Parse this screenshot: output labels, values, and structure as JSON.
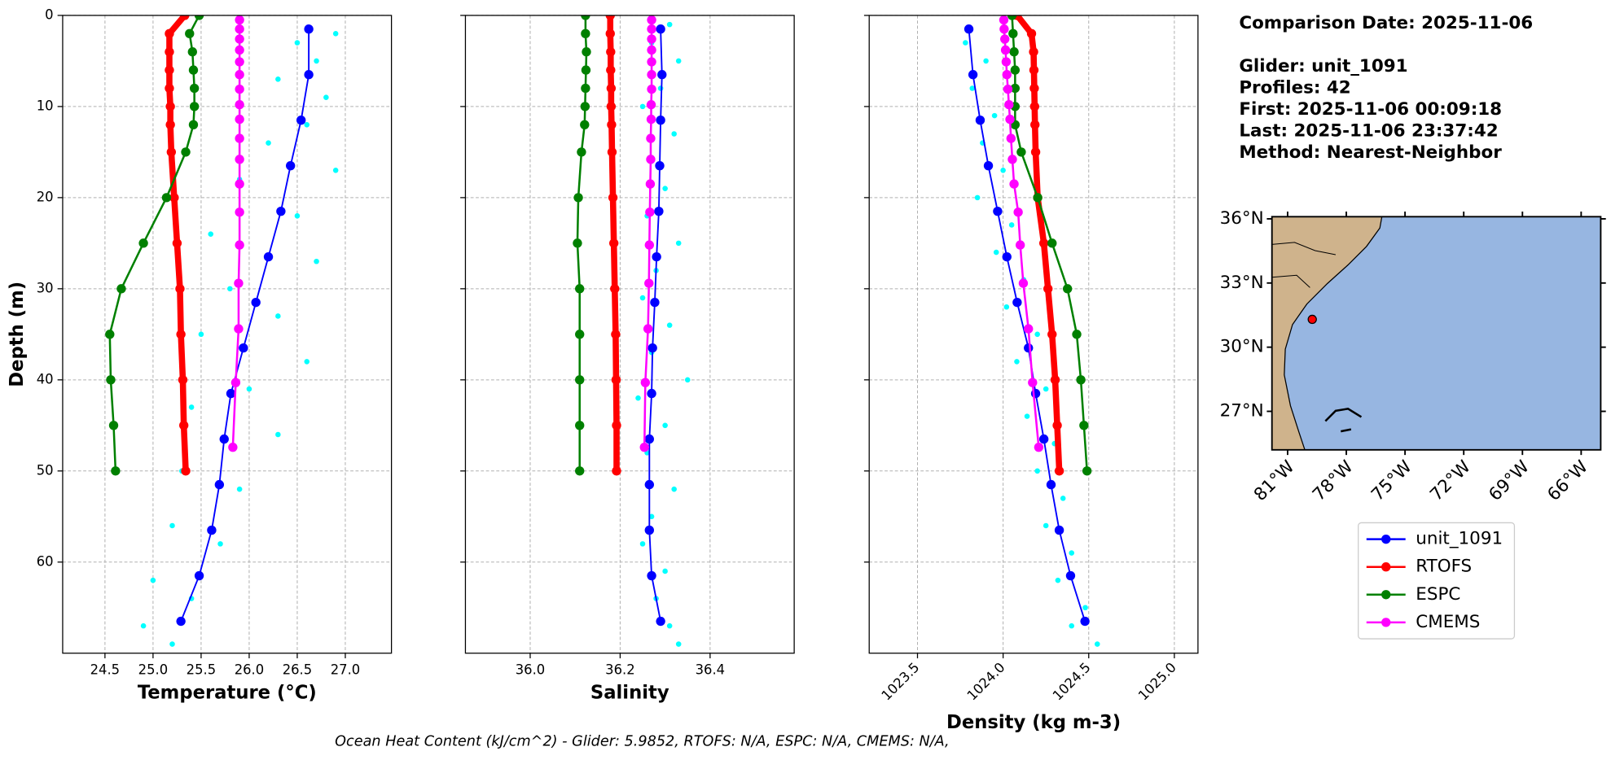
{
  "info": [
    "Comparison Date: 2025-11-06",
    "Glider: unit_1091",
    "Profiles: 42",
    "First: 2025-11-06 00:09:18",
    "Last: 2025-11-06 23:37:42",
    "Method: Nearest-Neighbor"
  ],
  "footer": "Ocean Heat Content (kJ/cm^2) - Glider: 5.9852,  RTOFS: N/A,  ESPC: N/A,  CMEMS: N/A,",
  "chart_data": [
    {
      "type": "profile",
      "xlabel": "Temperature (°C)",
      "ylabel": "Depth (m)",
      "grid": true,
      "xlim": [
        24.06,
        27.48
      ],
      "xticks": [
        24.5,
        {
          "value": 25,
          "label": "25.0"
        },
        25.5,
        {
          "value": 26,
          "label": "26.0"
        },
        26.5,
        {
          "value": 27,
          "label": "27.0"
        }
      ],
      "ylim": [
        70,
        0
      ],
      "yticks": [
        0,
        10,
        20,
        30,
        40,
        50,
        60
      ],
      "scatter": {
        "color": "#00ffff",
        "x": [
          26.9,
          26.5,
          26.7,
          26.3,
          26.8,
          26.6,
          26.2,
          26.9,
          25.9,
          26.5,
          25.6,
          26.7,
          25.8,
          26.3,
          25.5,
          26.6,
          26.0,
          25.4,
          26.3,
          25.3,
          25.9,
          25.2,
          25.7,
          25.0,
          25.4,
          24.9,
          25.2
        ],
        "y": [
          2,
          3,
          5,
          7,
          9,
          12,
          14,
          17,
          18,
          22,
          24,
          27,
          30,
          33,
          35,
          38,
          41,
          43,
          46,
          50,
          52,
          56,
          58,
          62,
          64,
          67,
          69
        ]
      },
      "series": [
        {
          "name": "unit_1091",
          "color": "#0000ff",
          "linewidth": 1.5,
          "x": [
            26.62,
            26.62,
            26.54,
            26.43,
            26.33,
            26.2,
            26.07,
            25.94,
            25.81,
            25.74,
            25.69,
            25.61,
            25.48,
            25.29
          ],
          "y": [
            1.5,
            6.5,
            11.5,
            16.5,
            21.5,
            26.5,
            31.5,
            36.5,
            41.5,
            46.5,
            51.5,
            56.5,
            61.5,
            66.5
          ]
        },
        {
          "name": "RTOFS",
          "color": "#ff0000",
          "linewidth": 6,
          "x": [
            25.33,
            25.17,
            25.17,
            25.17,
            25.17,
            25.18,
            25.18,
            25.19,
            25.22,
            25.25,
            25.28,
            25.29,
            25.31,
            25.32,
            25.34
          ],
          "y": [
            0,
            2,
            4,
            6,
            8,
            10,
            12,
            15,
            20,
            25,
            30,
            35,
            40,
            45,
            50
          ]
        },
        {
          "name": "ESPC",
          "color": "#008000",
          "linewidth": 2,
          "x": [
            25.48,
            25.38,
            25.41,
            25.42,
            25.43,
            25.43,
            25.42,
            25.34,
            25.14,
            24.9,
            24.67,
            24.55,
            24.56,
            24.59,
            24.61
          ],
          "y": [
            0,
            2,
            4,
            6,
            8,
            10,
            12,
            15,
            20,
            25,
            30,
            35,
            40,
            45,
            50
          ]
        },
        {
          "name": "CMEMS",
          "color": "#ff00ff",
          "linewidth": 2,
          "x": [
            25.9,
            25.9,
            25.9,
            25.9,
            25.9,
            25.9,
            25.9,
            25.9,
            25.9,
            25.9,
            25.9,
            25.9,
            25.9,
            25.9,
            25.89,
            25.89,
            25.86,
            25.83
          ],
          "y": [
            0.5,
            1.5,
            2.6,
            3.8,
            5.1,
            6.5,
            8.1,
            9.8,
            11.4,
            13.5,
            15.8,
            18.5,
            21.6,
            25.2,
            29.4,
            34.4,
            40.3,
            47.4
          ]
        }
      ]
    },
    {
      "type": "profile",
      "xlabel": "Salinity",
      "grid": true,
      "xlim": [
        35.856,
        36.587
      ],
      "xticks": [
        {
          "value": 36,
          "label": "36.0"
        },
        36.2,
        36.4
      ],
      "scatter": {
        "color": "#00ffff",
        "x": [
          36.31,
          36.27,
          36.33,
          36.29,
          36.25,
          36.32,
          36.27,
          36.3,
          36.26,
          36.33,
          36.28,
          36.25,
          36.31,
          36.27,
          36.35,
          36.24,
          36.3,
          36.26,
          36.32,
          36.27,
          36.25,
          36.3,
          36.28,
          36.31,
          36.33
        ],
        "y": [
          1,
          3,
          5,
          8,
          10,
          13,
          16,
          19,
          22,
          25,
          28,
          31,
          34,
          37,
          40,
          42,
          45,
          48,
          52,
          55,
          58,
          61,
          64,
          67,
          69
        ]
      },
      "series": [
        {
          "color": "#0000ff",
          "linewidth": 1.5,
          "x": [
            36.29,
            36.293,
            36.29,
            36.288,
            36.286,
            36.281,
            36.277,
            36.272,
            36.27,
            36.265,
            36.265,
            36.265,
            36.27,
            36.29
          ],
          "y": [
            1.5,
            6.5,
            11.5,
            16.5,
            21.5,
            26.5,
            31.5,
            36.5,
            41.5,
            46.5,
            51.5,
            56.5,
            61.5,
            66.5
          ]
        },
        {
          "color": "#ff0000",
          "linewidth": 6,
          "x": [
            36.178,
            36.178,
            36.179,
            36.179,
            36.18,
            36.18,
            36.181,
            36.182,
            36.184,
            36.186,
            36.188,
            36.19,
            36.191,
            36.192,
            36.192
          ],
          "y": [
            0,
            2,
            4,
            6,
            8,
            10,
            12,
            15,
            20,
            25,
            30,
            35,
            40,
            45,
            50
          ]
        },
        {
          "color": "#008000",
          "linewidth": 2,
          "x": [
            36.123,
            36.123,
            36.125,
            36.124,
            36.123,
            36.122,
            36.121,
            36.114,
            36.107,
            36.105,
            36.11,
            36.11,
            36.11,
            36.11,
            36.11
          ],
          "y": [
            0,
            2,
            4,
            6,
            8,
            10,
            12,
            15,
            20,
            25,
            30,
            35,
            40,
            45,
            50
          ]
        },
        {
          "color": "#ff00ff",
          "linewidth": 2,
          "x": [
            36.27,
            36.27,
            36.27,
            36.27,
            36.27,
            36.27,
            36.27,
            36.269,
            36.269,
            36.268,
            36.268,
            36.267,
            36.266,
            36.265,
            36.264,
            36.262,
            36.256,
            36.254
          ],
          "y": [
            0.5,
            1.5,
            2.6,
            3.8,
            5.1,
            6.5,
            8.1,
            9.8,
            11.4,
            13.5,
            15.8,
            18.5,
            21.6,
            25.2,
            29.4,
            34.4,
            40.3,
            47.4
          ]
        }
      ]
    },
    {
      "type": "profile",
      "xlabel": "Density (kg m-3)",
      "grid": true,
      "xlim": [
        1023.218,
        1025.138
      ],
      "xticks": [
        1023.5,
        {
          "value": 1024,
          "label": "1024.0"
        },
        1024.5,
        {
          "value": 1025,
          "label": "1025.0"
        }
      ],
      "scatter": {
        "color": "#00ffff",
        "x": [
          1023.78,
          1023.9,
          1023.82,
          1023.95,
          1023.88,
          1024.0,
          1023.85,
          1024.05,
          1023.96,
          1024.12,
          1024.02,
          1024.2,
          1024.08,
          1024.25,
          1024.14,
          1024.3,
          1024.2,
          1024.35,
          1024.25,
          1024.4,
          1024.32,
          1024.48,
          1024.4,
          1024.55
        ],
        "y": [
          3,
          5,
          8,
          11,
          14,
          17,
          20,
          23,
          26,
          29,
          32,
          35,
          38,
          41,
          44,
          47,
          50,
          53,
          56,
          59,
          62,
          65,
          67,
          69
        ]
      },
      "series": [
        {
          "color": "#0000ff",
          "linewidth": 1.5,
          "x": [
            1023.8,
            1023.824,
            1023.866,
            1023.914,
            1023.968,
            1024.022,
            1024.082,
            1024.148,
            1024.19,
            1024.238,
            1024.28,
            1024.328,
            1024.394,
            1024.478
          ],
          "y": [
            1.5,
            6.5,
            11.5,
            16.5,
            21.5,
            26.5,
            31.5,
            36.5,
            41.5,
            46.5,
            51.5,
            56.5,
            61.5,
            66.5
          ]
        },
        {
          "color": "#ff0000",
          "linewidth": 6,
          "x": [
            1024.082,
            1024.166,
            1024.178,
            1024.18,
            1024.182,
            1024.184,
            1024.186,
            1024.19,
            1024.202,
            1024.238,
            1024.262,
            1024.286,
            1024.304,
            1024.316,
            1024.328
          ],
          "y": [
            0,
            2,
            4,
            6,
            8,
            10,
            12,
            15,
            20,
            25,
            30,
            35,
            40,
            45,
            50
          ]
        },
        {
          "color": "#008000",
          "linewidth": 2,
          "x": [
            1024.052,
            1024.058,
            1024.064,
            1024.07,
            1024.07,
            1024.07,
            1024.07,
            1024.106,
            1024.202,
            1024.286,
            1024.376,
            1024.43,
            1024.454,
            1024.472,
            1024.49
          ],
          "y": [
            0,
            2,
            4,
            6,
            8,
            10,
            12,
            15,
            20,
            25,
            30,
            35,
            40,
            45,
            50
          ]
        },
        {
          "color": "#ff00ff",
          "linewidth": 2,
          "x": [
            1024.004,
            1024.006,
            1024.01,
            1024.014,
            1024.018,
            1024.022,
            1024.028,
            1024.034,
            1024.04,
            1024.046,
            1024.054,
            1024.064,
            1024.088,
            1024.1,
            1024.118,
            1024.148,
            1024.172,
            1024.208
          ],
          "y": [
            0.5,
            1.5,
            2.6,
            3.8,
            5.1,
            6.5,
            8.1,
            9.8,
            11.4,
            13.5,
            15.8,
            18.5,
            21.6,
            25.2,
            29.4,
            34.4,
            40.3,
            47.4
          ]
        }
      ]
    },
    {
      "type": "map",
      "ocean_color": "#97b6e1",
      "land_color": "#cfb38c",
      "xlim": [
        -81.8,
        -65
      ],
      "ylim": [
        25.2,
        36.1
      ],
      "xticks": [
        {
          "value": -81,
          "label": "81°W"
        },
        {
          "value": -78,
          "label": "78°W"
        },
        {
          "value": -75,
          "label": "75°W"
        },
        {
          "value": -72,
          "label": "72°W"
        },
        {
          "value": -69,
          "label": "69°W"
        },
        {
          "value": -66,
          "label": "66°W"
        }
      ],
      "yticks": [
        {
          "value": 36,
          "label": "36°N"
        },
        {
          "value": 33,
          "label": "33°N"
        },
        {
          "value": 30,
          "label": "30°N"
        },
        {
          "value": 27,
          "label": "27°N"
        }
      ],
      "point": {
        "lon": -79.74,
        "lat": 31.3,
        "color": "#ff0000"
      }
    }
  ]
}
